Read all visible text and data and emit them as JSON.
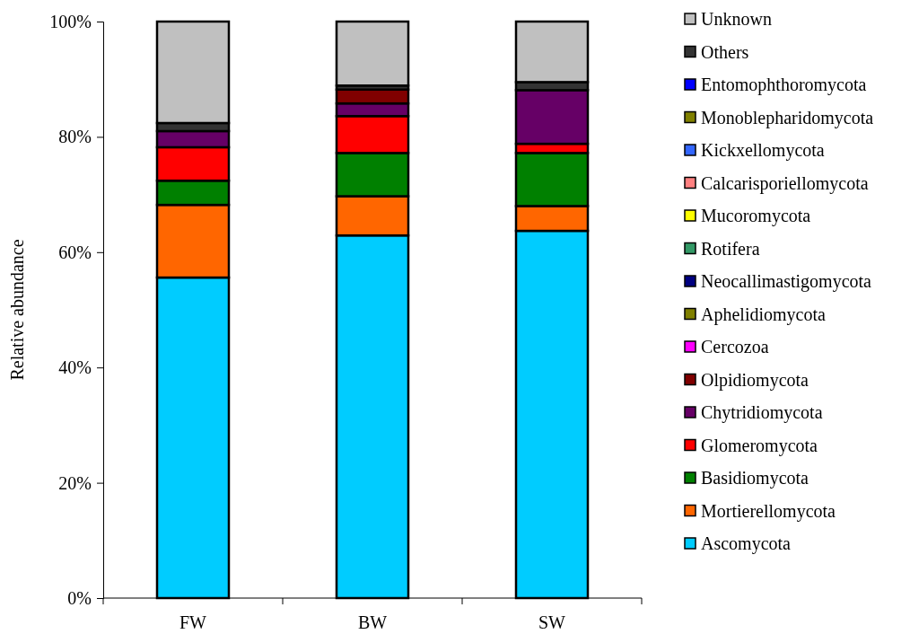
{
  "chart_data": {
    "type": "bar",
    "stacked": true,
    "ylabel": "Relative abundance",
    "categories": [
      "FW",
      "BW",
      "SW"
    ],
    "ylim": [
      0,
      100
    ],
    "yticks": [
      {
        "value": 0,
        "label": "0%"
      },
      {
        "value": 20,
        "label": "20%"
      },
      {
        "value": 40,
        "label": "40%"
      },
      {
        "value": 60,
        "label": "60%"
      },
      {
        "value": 80,
        "label": "80%"
      },
      {
        "value": 100,
        "label": "100%"
      }
    ],
    "grid": false,
    "legend": "right",
    "series": [
      {
        "name": "Ascomycota",
        "color": "#00ccff",
        "values": [
          55.6,
          62.9,
          63.7
        ]
      },
      {
        "name": "Mortierellomycota",
        "color": "#ff6600",
        "values": [
          12.6,
          6.8,
          4.3
        ]
      },
      {
        "name": "Basidiomycota",
        "color": "#008000",
        "values": [
          4.2,
          7.5,
          9.2
        ]
      },
      {
        "name": "Glomeromycota",
        "color": "#ff0000",
        "values": [
          5.8,
          6.4,
          1.6
        ]
      },
      {
        "name": "Chytridiomycota",
        "color": "#660066",
        "values": [
          2.8,
          2.2,
          9.3
        ]
      },
      {
        "name": "Olpidiomycota",
        "color": "#800000",
        "values": [
          0,
          2.4,
          0
        ]
      },
      {
        "name": "Cercozoa",
        "color": "#ff00ff",
        "values": [
          0,
          0,
          0
        ]
      },
      {
        "name": "Aphelidiomycota",
        "color": "#808000",
        "values": [
          0,
          0,
          0
        ]
      },
      {
        "name": "Neocallimastigomycota",
        "color": "#000080",
        "values": [
          0,
          0,
          0
        ]
      },
      {
        "name": "Rotifera",
        "color": "#339966",
        "values": [
          0,
          0,
          0
        ]
      },
      {
        "name": "Mucoromycota",
        "color": "#ffff00",
        "values": [
          0,
          0,
          0
        ]
      },
      {
        "name": "Calcarisporiellomycota",
        "color": "#ff8080",
        "values": [
          0,
          0,
          0
        ]
      },
      {
        "name": "Kickxellomycota",
        "color": "#3366ff",
        "values": [
          0,
          0,
          0
        ]
      },
      {
        "name": "Monoblepharidomycota",
        "color": "#808000",
        "values": [
          0,
          0,
          0
        ]
      },
      {
        "name": "Entomophthoromycota",
        "color": "#0000ff",
        "values": [
          0,
          0,
          0
        ]
      },
      {
        "name": "Others",
        "color": "#333333",
        "values": [
          1.4,
          0.7,
          1.4
        ]
      },
      {
        "name": "Unknown",
        "color": "#c0c0c0",
        "values": [
          17.6,
          11.1,
          10.5
        ]
      }
    ]
  }
}
